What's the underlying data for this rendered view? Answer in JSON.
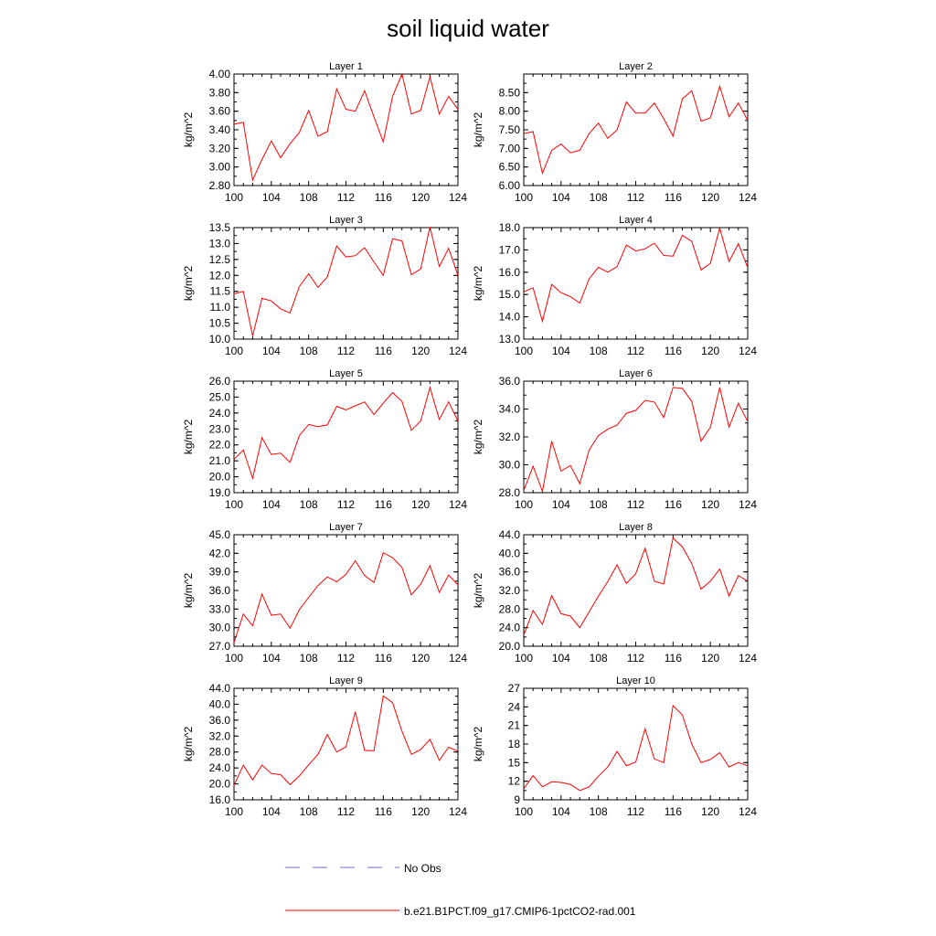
{
  "figure": {
    "title": "soil liquid water",
    "x_ticks": [
      "100",
      "104",
      "108",
      "112",
      "116",
      "120",
      "124"
    ],
    "legend": [
      {
        "label": "No Obs",
        "color": "#6b6bd6",
        "style": "dashed"
      },
      {
        "label": "b.e21.B1PCT.f09_g17.CMIP6-1pctCO2-rad.001",
        "color": "#ff0000",
        "style": "solid"
      }
    ]
  },
  "chart_data": [
    {
      "type": "line",
      "title": "Layer 1",
      "xlabel": "",
      "ylabel": "kg/m^2",
      "xlim": [
        100,
        124
      ],
      "ylim": [
        2.8,
        4.0
      ],
      "y_ticks": [
        "2.80",
        "3.00",
        "3.20",
        "3.40",
        "3.60",
        "3.80",
        "4.00"
      ],
      "x": [
        100,
        101,
        102,
        103,
        104,
        105,
        106,
        107,
        108,
        109,
        110,
        111,
        112,
        113,
        114,
        115,
        116,
        117,
        118,
        119,
        120,
        121,
        122,
        123,
        124
      ],
      "series": [
        {
          "name": "b.e21.B1PCT.f09_g17.CMIP6-1pctCO2-rad.001",
          "color": "#ff0000",
          "values": [
            3.46,
            3.48,
            2.86,
            3.08,
            3.28,
            3.1,
            3.25,
            3.37,
            3.61,
            3.33,
            3.38,
            3.84,
            3.62,
            3.6,
            3.82,
            3.54,
            3.27,
            3.76,
            4.0,
            3.57,
            3.61,
            3.97,
            3.57,
            3.76,
            3.62
          ]
        }
      ]
    },
    {
      "type": "line",
      "title": "Layer 2",
      "xlabel": "",
      "ylabel": "kg/m^2",
      "xlim": [
        100,
        124
      ],
      "ylim": [
        6.0,
        9.0
      ],
      "y_ticks": [
        "6.00",
        "6.50",
        "7.00",
        "7.50",
        "8.00",
        "8.50"
      ],
      "x": [
        100,
        101,
        102,
        103,
        104,
        105,
        106,
        107,
        108,
        109,
        110,
        111,
        112,
        113,
        114,
        115,
        116,
        117,
        118,
        119,
        120,
        121,
        122,
        123,
        124
      ],
      "series": [
        {
          "name": "b.e21.B1PCT.f09_g17.CMIP6-1pctCO2-rad.001",
          "color": "#ff0000",
          "values": [
            7.4,
            7.45,
            6.33,
            6.95,
            7.12,
            6.88,
            6.95,
            7.4,
            7.68,
            7.27,
            7.5,
            8.25,
            7.95,
            7.95,
            8.22,
            7.8,
            7.33,
            8.33,
            8.55,
            7.73,
            7.82,
            8.67,
            7.85,
            8.22,
            7.75
          ]
        }
      ]
    },
    {
      "type": "line",
      "title": "Layer 3",
      "xlabel": "",
      "ylabel": "kg/m^2",
      "xlim": [
        100,
        124
      ],
      "ylim": [
        10.0,
        13.5
      ],
      "y_ticks": [
        "10.0",
        "10.5",
        "11.0",
        "11.5",
        "12.0",
        "12.5",
        "13.0",
        "13.5"
      ],
      "x": [
        100,
        101,
        102,
        103,
        104,
        105,
        106,
        107,
        108,
        109,
        110,
        111,
        112,
        113,
        114,
        115,
        116,
        117,
        118,
        119,
        120,
        121,
        122,
        123,
        124
      ],
      "series": [
        {
          "name": "b.e21.B1PCT.f09_g17.CMIP6-1pctCO2-rad.001",
          "color": "#ff0000",
          "values": [
            11.42,
            11.5,
            10.1,
            11.28,
            11.2,
            10.95,
            10.82,
            11.65,
            12.05,
            11.62,
            11.95,
            12.92,
            12.58,
            12.62,
            12.87,
            12.42,
            12.0,
            13.15,
            13.08,
            12.02,
            12.2,
            13.52,
            12.28,
            12.85,
            12.0
          ]
        }
      ]
    },
    {
      "type": "line",
      "title": "Layer 4",
      "xlabel": "",
      "ylabel": "kg/m^2",
      "xlim": [
        100,
        124
      ],
      "ylim": [
        13.0,
        18.0
      ],
      "y_ticks": [
        "13.0",
        "14.0",
        "15.0",
        "16.0",
        "17.0",
        "18.0"
      ],
      "x": [
        100,
        101,
        102,
        103,
        104,
        105,
        106,
        107,
        108,
        109,
        110,
        111,
        112,
        113,
        114,
        115,
        116,
        117,
        118,
        119,
        120,
        121,
        122,
        123,
        124
      ],
      "series": [
        {
          "name": "b.e21.B1PCT.f09_g17.CMIP6-1pctCO2-rad.001",
          "color": "#ff0000",
          "values": [
            15.12,
            15.3,
            13.8,
            15.45,
            15.08,
            14.9,
            14.62,
            15.7,
            16.22,
            16.0,
            16.25,
            17.22,
            16.95,
            17.05,
            17.3,
            16.75,
            16.72,
            17.65,
            17.38,
            16.1,
            16.4,
            17.98,
            16.48,
            17.28,
            16.2
          ]
        }
      ]
    },
    {
      "type": "line",
      "title": "Layer 5",
      "xlabel": "",
      "ylabel": "kg/m^2",
      "xlim": [
        100,
        124
      ],
      "ylim": [
        19.0,
        26.0
      ],
      "y_ticks": [
        "19.0",
        "20.0",
        "21.0",
        "22.0",
        "23.0",
        "24.0",
        "25.0",
        "26.0"
      ],
      "x": [
        100,
        101,
        102,
        103,
        104,
        105,
        106,
        107,
        108,
        109,
        110,
        111,
        112,
        113,
        114,
        115,
        116,
        117,
        118,
        119,
        120,
        121,
        122,
        123,
        124
      ],
      "series": [
        {
          "name": "b.e21.B1PCT.f09_g17.CMIP6-1pctCO2-rad.001",
          "color": "#ff0000",
          "values": [
            21.08,
            21.68,
            19.9,
            22.45,
            21.4,
            21.48,
            20.9,
            22.58,
            23.28,
            23.15,
            23.25,
            24.42,
            24.2,
            24.45,
            24.7,
            23.9,
            24.62,
            25.28,
            24.72,
            22.92,
            23.5,
            25.6,
            23.6,
            24.7,
            23.5
          ]
        }
      ]
    },
    {
      "type": "line",
      "title": "Layer 6",
      "xlabel": "",
      "ylabel": "kg/m^2",
      "xlim": [
        100,
        124
      ],
      "ylim": [
        28.0,
        36.0
      ],
      "y_ticks": [
        "28.0",
        "30.0",
        "32.0",
        "34.0",
        "36.0"
      ],
      "x": [
        100,
        101,
        102,
        103,
        104,
        105,
        106,
        107,
        108,
        109,
        110,
        111,
        112,
        113,
        114,
        115,
        116,
        117,
        118,
        119,
        120,
        121,
        122,
        123,
        124
      ],
      "series": [
        {
          "name": "b.e21.B1PCT.f09_g17.CMIP6-1pctCO2-rad.001",
          "color": "#ff0000",
          "values": [
            28.15,
            29.9,
            28.1,
            31.7,
            29.55,
            29.95,
            28.65,
            31.05,
            32.1,
            32.55,
            32.85,
            33.7,
            33.9,
            34.62,
            34.5,
            33.4,
            35.55,
            35.48,
            34.55,
            31.7,
            32.7,
            35.55,
            32.7,
            34.42,
            33.1
          ]
        }
      ]
    },
    {
      "type": "line",
      "title": "Layer 7",
      "xlabel": "",
      "ylabel": "kg/m^2",
      "xlim": [
        100,
        124
      ],
      "ylim": [
        27.0,
        45.0
      ],
      "y_ticks": [
        "27.0",
        "30.0",
        "33.0",
        "36.0",
        "39.0",
        "42.0",
        "45.0"
      ],
      "x": [
        100,
        101,
        102,
        103,
        104,
        105,
        106,
        107,
        108,
        109,
        110,
        111,
        112,
        113,
        114,
        115,
        116,
        117,
        118,
        119,
        120,
        121,
        122,
        123,
        124
      ],
      "series": [
        {
          "name": "b.e21.B1PCT.f09_g17.CMIP6-1pctCO2-rad.001",
          "color": "#ff0000",
          "values": [
            27.6,
            32.2,
            30.3,
            35.4,
            32.0,
            32.2,
            29.9,
            32.9,
            34.9,
            36.8,
            38.2,
            37.4,
            38.6,
            40.8,
            38.4,
            37.3,
            42.1,
            41.3,
            39.7,
            35.3,
            37.0,
            40.0,
            35.7,
            38.5,
            36.9
          ]
        }
      ]
    },
    {
      "type": "line",
      "title": "Layer 8",
      "xlabel": "",
      "ylabel": "kg/m^2",
      "xlim": [
        100,
        124
      ],
      "ylim": [
        20.0,
        44.0
      ],
      "y_ticks": [
        "20.0",
        "24.0",
        "28.0",
        "32.0",
        "36.0",
        "40.0",
        "44.0"
      ],
      "x": [
        100,
        101,
        102,
        103,
        104,
        105,
        106,
        107,
        108,
        109,
        110,
        111,
        112,
        113,
        114,
        115,
        116,
        117,
        118,
        119,
        120,
        121,
        122,
        123,
        124
      ],
      "series": [
        {
          "name": "b.e21.B1PCT.f09_g17.CMIP6-1pctCO2-rad.001",
          "color": "#ff0000",
          "values": [
            22.4,
            27.7,
            24.7,
            30.9,
            27.0,
            26.5,
            24.0,
            27.4,
            30.8,
            33.9,
            37.5,
            33.5,
            35.6,
            41.1,
            34.0,
            33.4,
            43.3,
            41.4,
            37.8,
            32.3,
            34.0,
            36.6,
            30.8,
            35.2,
            34.0
          ]
        }
      ]
    },
    {
      "type": "line",
      "title": "Layer 9",
      "xlabel": "",
      "ylabel": "kg/m^2",
      "xlim": [
        100,
        124
      ],
      "ylim": [
        16.0,
        44.0
      ],
      "y_ticks": [
        "16.0",
        "20.0",
        "24.0",
        "28.0",
        "32.0",
        "36.0",
        "40.0",
        "44.0"
      ],
      "x": [
        100,
        101,
        102,
        103,
        104,
        105,
        106,
        107,
        108,
        109,
        110,
        111,
        112,
        113,
        114,
        115,
        116,
        117,
        118,
        119,
        120,
        121,
        122,
        123,
        124
      ],
      "series": [
        {
          "name": "b.e21.B1PCT.f09_g17.CMIP6-1pctCO2-rad.001",
          "color": "#ff0000",
          "values": [
            19.6,
            24.7,
            21.0,
            24.7,
            22.6,
            22.3,
            19.8,
            22.0,
            24.8,
            27.4,
            32.4,
            28.0,
            29.3,
            38.1,
            28.4,
            28.3,
            42.1,
            40.4,
            33.2,
            27.4,
            28.6,
            31.2,
            25.9,
            29.2,
            28.2
          ]
        }
      ]
    },
    {
      "type": "line",
      "title": "Layer 10",
      "xlabel": "",
      "ylabel": "kg/m^2",
      "xlim": [
        100,
        124
      ],
      "ylim": [
        9,
        27
      ],
      "y_ticks": [
        "9",
        "12",
        "15",
        "18",
        "21",
        "24",
        "27"
      ],
      "x": [
        100,
        101,
        102,
        103,
        104,
        105,
        106,
        107,
        108,
        109,
        110,
        111,
        112,
        113,
        114,
        115,
        116,
        117,
        118,
        119,
        120,
        121,
        122,
        123,
        124
      ],
      "series": [
        {
          "name": "b.e21.B1PCT.f09_g17.CMIP6-1pctCO2-rad.001",
          "color": "#ff0000",
          "values": [
            10.8,
            12.9,
            11.1,
            11.9,
            11.8,
            11.5,
            10.5,
            11.1,
            12.8,
            14.3,
            16.8,
            14.5,
            15.1,
            20.5,
            15.6,
            15.0,
            24.2,
            22.7,
            18.0,
            15.0,
            15.5,
            16.6,
            14.3,
            15.0,
            14.5
          ]
        }
      ]
    }
  ]
}
